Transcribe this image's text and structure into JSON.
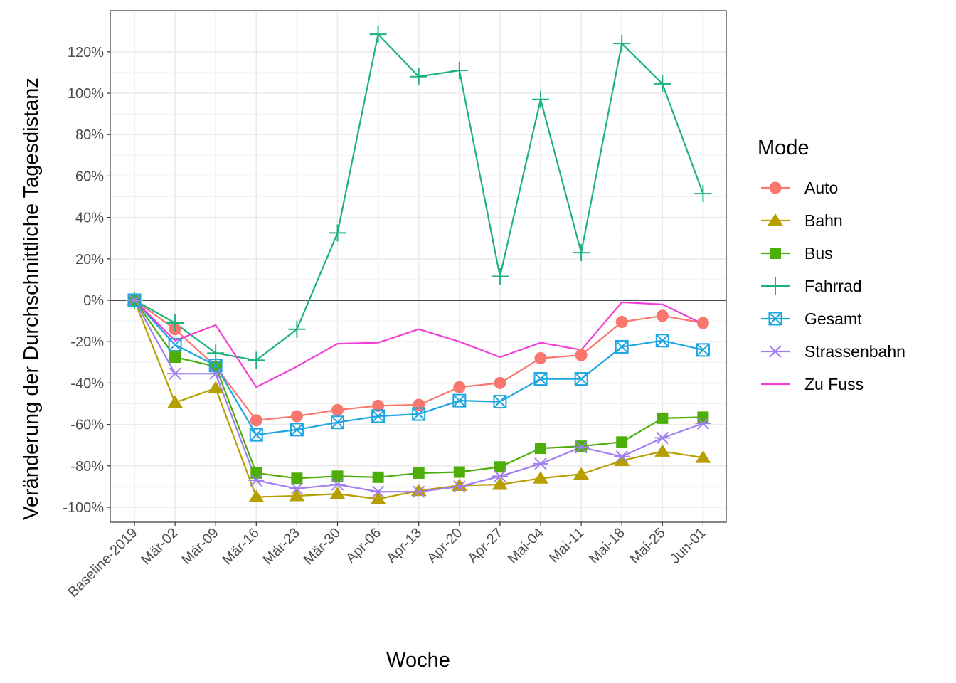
{
  "chart_data": {
    "type": "line",
    "title": "",
    "xlabel": "Woche",
    "ylabel": "Veränderung der Durchschnittliche Tagesdistanz",
    "categories": [
      "Baseline-2019",
      "Mär-02",
      "Mär-09",
      "Mär-16",
      "Mär-23",
      "Mär-30",
      "Apr-06",
      "Apr-13",
      "Apr-20",
      "Apr-27",
      "Mai-04",
      "Mai-11",
      "Mai-18",
      "Mai-25",
      "Jun-01"
    ],
    "ylim": [
      -107,
      135
    ],
    "yticks": [
      -100,
      -80,
      -60,
      -40,
      -20,
      0,
      20,
      40,
      60,
      80,
      100,
      120
    ],
    "ytick_labels": [
      "-100%",
      "-80%",
      "-60%",
      "-40%",
      "-20%",
      "0%",
      "20%",
      "40%",
      "60%",
      "80%",
      "100%",
      "120%"
    ],
    "y_unit": "%",
    "grid": true,
    "zero_line": true,
    "legend_title": "Mode",
    "legend_position": "right",
    "series": [
      {
        "name": "Auto",
        "color": "#F8766D",
        "marker": "circle",
        "values": [
          0,
          -14,
          -32,
          -58,
          -56,
          -53,
          -51,
          -50.5,
          -42,
          -40,
          -28,
          -26.5,
          -10.5,
          -7.5,
          -11
        ]
      },
      {
        "name": "Bahn",
        "color": "#B79F00",
        "marker": "triangle",
        "values": [
          0,
          -49.5,
          -42.5,
          -95,
          -94.5,
          -93.5,
          -96,
          -92,
          -89.5,
          -89,
          -86,
          -84,
          -77.5,
          -73,
          -76
        ]
      },
      {
        "name": "Bus",
        "color": "#4DAE09",
        "marker": "square",
        "values": [
          0,
          -27.5,
          -32,
          -83.5,
          -86,
          -85,
          -85.5,
          -83.5,
          -83,
          -80.5,
          -71.5,
          -70.5,
          -68.5,
          -57,
          -56.5
        ]
      },
      {
        "name": "Fahrrad",
        "color": "#1DB37E",
        "marker": "plus",
        "values": [
          0,
          -11,
          -25.5,
          -29,
          -14,
          32.5,
          128.5,
          108,
          111,
          11.5,
          97,
          23,
          124,
          104.5,
          51.5
        ]
      },
      {
        "name": "Gesamt",
        "color": "#1CA6E2",
        "marker": "boxx",
        "values": [
          0,
          -21.5,
          -31.5,
          -65,
          -62.5,
          -59,
          -56,
          -55,
          -48.5,
          -49,
          -38,
          -38,
          -22.5,
          -19.5,
          -24
        ]
      },
      {
        "name": "Strassenbahn",
        "color": "#A17FF0",
        "marker": "asterisk",
        "values": [
          0,
          -35.5,
          -35.5,
          -87,
          -91,
          -89,
          -92.5,
          -92.5,
          -90,
          -85,
          -79,
          -71,
          -75.5,
          -66.5,
          -59.5
        ]
      },
      {
        "name": "Zu Fuss",
        "color": "#F13FD5",
        "marker": "none",
        "values": [
          0,
          -19.5,
          -12,
          -42,
          -32,
          -21,
          -20.5,
          -14,
          -20,
          -27.5,
          -20.5,
          -24,
          -1,
          -2,
          -11.5
        ]
      }
    ]
  }
}
